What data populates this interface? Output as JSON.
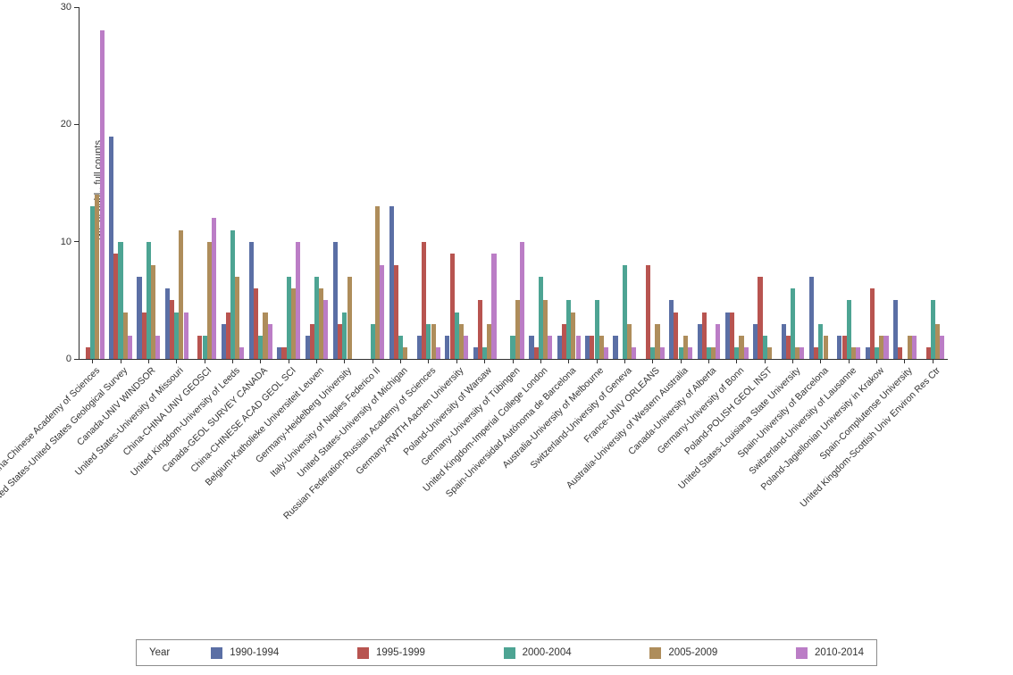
{
  "chart_data": {
    "type": "bar",
    "title": "",
    "xlabel": "",
    "ylabel": "No. of publ., full counts",
    "ylim": [
      0,
      30
    ],
    "yticks": [
      0,
      10,
      20,
      30
    ],
    "grid": false,
    "legend_title": "Year",
    "legend_position": "bottom",
    "categories": [
      "China-Chinese Academy of Sciences",
      "United States-United States Geological Survey",
      "Canada-UNIV WINDSOR",
      "United States-University of Missouri",
      "China-CHINA UNIV GEOSCI",
      "United Kingdom-University of Leeds",
      "Canada-GEOL SURVEY CANADA",
      "China-CHINESE ACAD GEOL SCI",
      "Belgium-Katholieke Universiteit Leuven",
      "Germany-Heidelberg University",
      "Italy-University of Naples Federico II",
      "United States-University of Michigan",
      "Russian Federation-Russian Academy of Sciences",
      "Germany-RWTH Aachen University",
      "Poland-University of Warsaw",
      "Germany-University of Tübingen",
      "United Kingdom-Imperial College London",
      "Spain-Universidad Autónoma de Barcelona",
      "Australia-University of Melbourne",
      "Switzerland-University of Geneva",
      "France-UNIV ORLEANS",
      "Australia-University of Western Australia",
      "Canada-University of Alberta",
      "Germany-University of Bonn",
      "Poland-POLISH GEOL INST",
      "United States-Louisiana State University",
      "Spain-University of Barcelona",
      "Switzerland-University of Lausanne",
      "Poland-Jagiellonian University in Krakow",
      "Spain-Complutense University",
      "United Kingdom-Scottish Univ Environ Res Ctr"
    ],
    "series": [
      {
        "name": "1990-1994",
        "color": "#5B6FA5",
        "values": [
          0,
          19,
          7,
          6,
          0,
          3,
          10,
          1,
          2,
          10,
          0,
          13,
          2,
          2,
          1,
          0,
          2,
          2,
          2,
          2,
          0,
          5,
          3,
          4,
          3,
          3,
          7,
          2,
          1,
          5,
          0
        ]
      },
      {
        "name": "1995-1999",
        "color": "#B85450",
        "values": [
          1,
          9,
          4,
          5,
          2,
          4,
          6,
          1,
          3,
          3,
          0,
          8,
          10,
          9,
          5,
          0,
          1,
          3,
          2,
          0,
          8,
          4,
          4,
          4,
          7,
          2,
          1,
          2,
          6,
          1,
          1
        ]
      },
      {
        "name": "2000-2004",
        "color": "#4DA493",
        "values": [
          13,
          10,
          10,
          4,
          2,
          11,
          2,
          7,
          7,
          4,
          3,
          2,
          3,
          4,
          1,
          2,
          7,
          5,
          5,
          8,
          1,
          1,
          1,
          1,
          2,
          6,
          3,
          5,
          1,
          0,
          5
        ]
      },
      {
        "name": "2005-2009",
        "color": "#AE8D5B",
        "values": [
          14,
          4,
          8,
          11,
          10,
          7,
          4,
          6,
          6,
          7,
          13,
          1,
          3,
          3,
          3,
          5,
          5,
          4,
          2,
          3,
          3,
          2,
          1,
          2,
          1,
          1,
          2,
          1,
          2,
          2,
          3
        ]
      },
      {
        "name": "2010-2014",
        "color": "#BB7DC6",
        "values": [
          28,
          2,
          2,
          4,
          12,
          1,
          3,
          10,
          5,
          0,
          8,
          0,
          1,
          2,
          9,
          10,
          2,
          2,
          1,
          1,
          1,
          1,
          3,
          1,
          0,
          1,
          0,
          1,
          2,
          2,
          2
        ]
      }
    ]
  }
}
